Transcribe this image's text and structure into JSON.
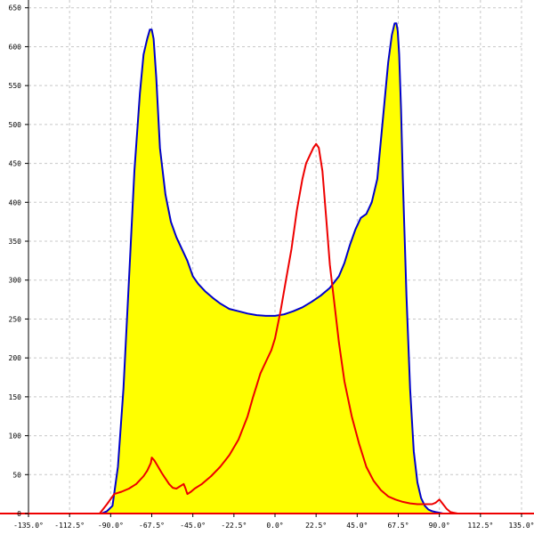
{
  "chart_data": {
    "type": "area",
    "xlim": [
      -135,
      135
    ],
    "ylim": [
      0,
      660
    ],
    "grid": true,
    "x_ticks": [
      -135,
      -112.5,
      -90,
      -67.5,
      -45,
      -22.5,
      0,
      22.5,
      45,
      67.5,
      90,
      112.5,
      135
    ],
    "x_tick_labels": [
      "-135.0°",
      "-112.5°",
      "-90.0°",
      "-67.5°",
      "-45.0°",
      "-22.5°",
      "0.0°",
      "22.5°",
      "45.0°",
      "67.5°",
      "90.0°",
      "112.5°",
      "135.0°"
    ],
    "y_ticks": [
      0,
      50,
      100,
      150,
      200,
      250,
      300,
      350,
      400,
      450,
      500,
      550,
      600,
      650
    ],
    "y_tick_labels": [
      "0",
      "50",
      "100",
      "150",
      "200",
      "250",
      "300",
      "350",
      "400",
      "450",
      "500",
      "550",
      "600",
      "650"
    ],
    "colors": {
      "fill": "#ffff00",
      "blue": "#0000cc",
      "red": "#ee0000",
      "grid": "#c8c8c8",
      "axis": "#000000"
    },
    "series": [
      {
        "color": "blue",
        "filled": true,
        "x": [
          -95,
          -92,
          -89,
          -86,
          -83,
          -80,
          -77,
          -74,
          -72,
          -70,
          -68.5,
          -67.5,
          -66.5,
          -65,
          -63,
          -60,
          -57,
          -54,
          -51,
          -48,
          -45,
          -42,
          -38,
          -34,
          -30,
          -25,
          -20,
          -15,
          -10,
          -5,
          0,
          5,
          10,
          15,
          20,
          25,
          30,
          35,
          38,
          41,
          44,
          47,
          50,
          53,
          56,
          58,
          60,
          62,
          64,
          65.5,
          66.5,
          67.2,
          68,
          69,
          70,
          72,
          74,
          76,
          78,
          80,
          82,
          84,
          86,
          88,
          90,
          92
        ],
        "y": [
          0,
          3,
          10,
          60,
          160,
          300,
          440,
          540,
          590,
          610,
          622,
          622,
          610,
          560,
          470,
          410,
          375,
          355,
          340,
          325,
          305,
          295,
          285,
          277,
          270,
          263,
          260,
          257,
          255,
          254,
          254,
          256,
          260,
          265,
          272,
          280,
          290,
          305,
          322,
          345,
          365,
          380,
          385,
          400,
          430,
          480,
          530,
          580,
          615,
          630,
          630,
          620,
          590,
          520,
          430,
          280,
          160,
          80,
          40,
          20,
          10,
          5,
          3,
          2,
          1,
          0
        ]
      },
      {
        "color": "red",
        "filled": false,
        "x": [
          -135,
          -96,
          -92,
          -88,
          -84,
          -80,
          -76,
          -72,
          -70,
          -68,
          -67.5,
          -66,
          -64,
          -62,
          -60,
          -58,
          -56,
          -54,
          -52,
          -50,
          -49,
          -48,
          -46,
          -44,
          -40,
          -35,
          -30,
          -25,
          -20,
          -15,
          -12,
          -10,
          -8,
          -5,
          -2,
          0,
          3,
          6,
          9,
          12,
          15,
          17,
          19,
          21,
          22.5,
          24,
          26,
          28,
          30,
          32,
          35,
          38,
          42,
          46,
          50,
          54,
          58,
          62,
          66,
          70,
          74,
          78,
          82,
          86,
          88,
          90,
          92,
          94,
          96,
          100,
          135
        ],
        "y": [
          0,
          0,
          12,
          25,
          28,
          32,
          38,
          48,
          55,
          65,
          72,
          68,
          60,
          52,
          45,
          38,
          33,
          32,
          35,
          38,
          32,
          25,
          28,
          32,
          38,
          48,
          60,
          75,
          95,
          125,
          150,
          165,
          180,
          195,
          210,
          225,
          260,
          300,
          340,
          390,
          430,
          450,
          460,
          470,
          475,
          470,
          440,
          380,
          320,
          280,
          220,
          170,
          125,
          90,
          60,
          42,
          30,
          22,
          18,
          15,
          13,
          12,
          12,
          12,
          14,
          18,
          12,
          6,
          2,
          0,
          0
        ]
      }
    ]
  }
}
